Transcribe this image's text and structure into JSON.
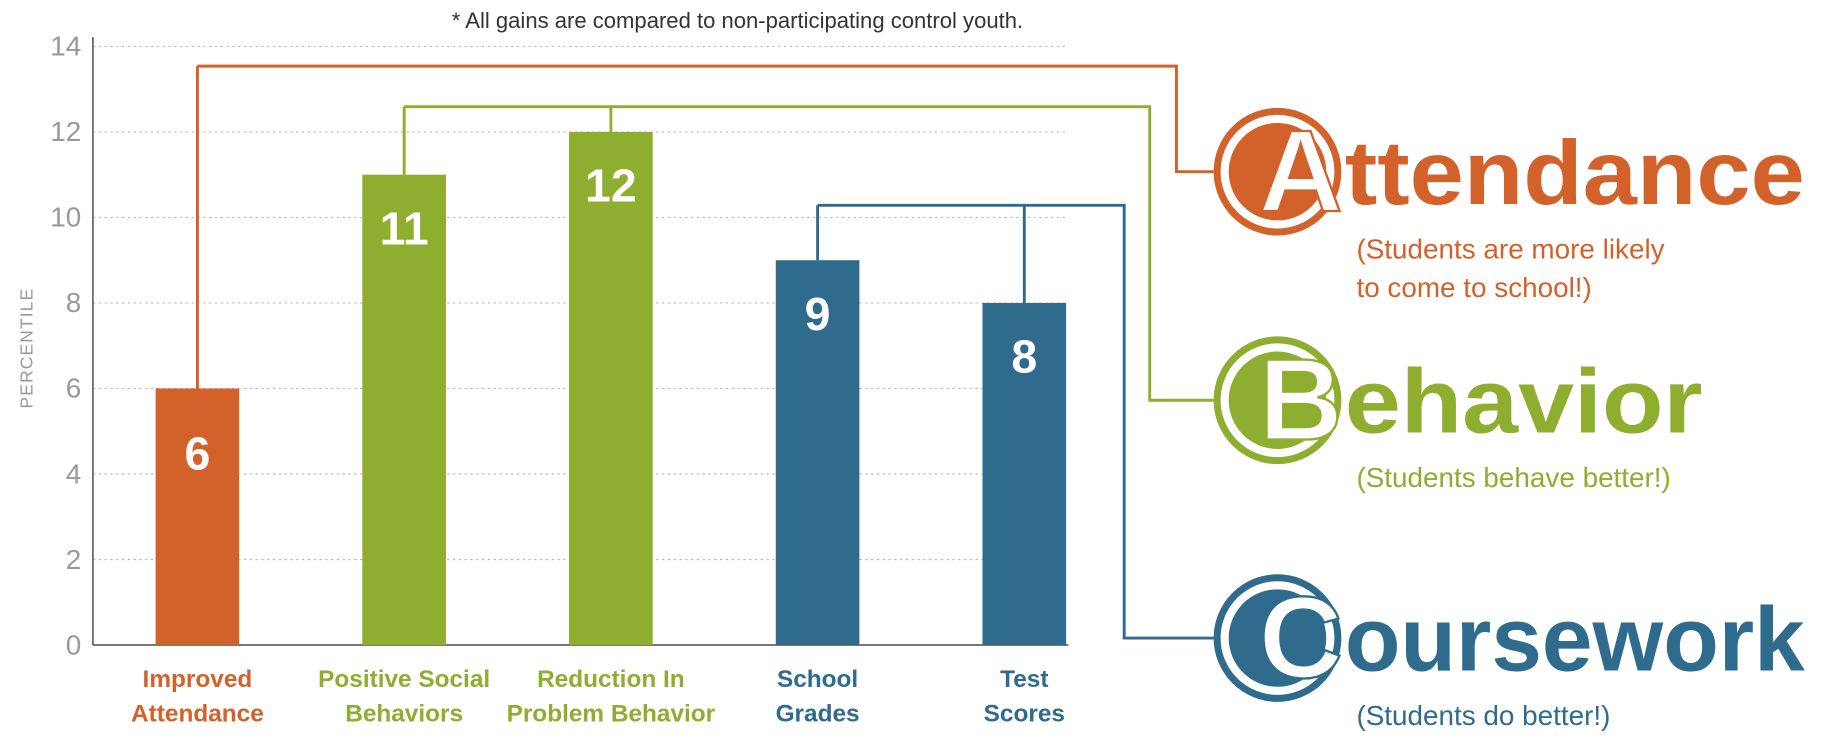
{
  "chart_data": {
    "type": "bar",
    "note": "* All gains are compared to non-participating control youth.",
    "y_label": "PERCENTILE",
    "categories": [
      [
        "Improved",
        "Attendance"
      ],
      [
        "Positive Social",
        "Behaviors"
      ],
      [
        "Reduction In",
        "Problem Behavior"
      ],
      [
        "School",
        "Grades"
      ],
      [
        "Test",
        "Scores"
      ]
    ],
    "values": [
      6,
      11,
      12,
      9,
      8
    ],
    "colors": [
      "#d2622a",
      "#8fad2e",
      "#8fad2e",
      "#2f6b8c",
      "#2f6b8c"
    ],
    "ylim": [
      0,
      14
    ],
    "yticks": [
      0,
      2,
      4,
      6,
      8,
      10,
      12,
      14
    ],
    "grid": true,
    "legend_groups": [
      {
        "letter": "A",
        "word": "ttendance",
        "color": "#d2622a",
        "caption": [
          "(Students are more likely",
          " to come to school!)"
        ]
      },
      {
        "letter": "B",
        "word": "ehavior",
        "color": "#8fad2e",
        "caption": [
          "(Students behave better!)"
        ]
      },
      {
        "letter": "C",
        "word": "oursework",
        "color": "#2f6b8c",
        "caption": [
          "(Students do better!)"
        ]
      }
    ]
  }
}
